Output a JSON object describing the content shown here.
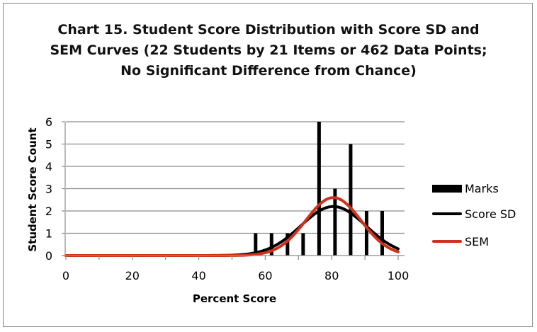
{
  "chart_data": {
    "type": "bar",
    "title_lines": [
      "Chart 15. Student Score Distribution with Score SD and",
      "SEM Curves (22 Students by 21 Items or 462 Data Points;",
      "No Significant Difference from Chance)"
    ],
    "title": "Chart 15. Student Score Distribution with Score SD and SEM Curves (22 Students by 21 Items or 462 Data Points; No Significant Difference from Chance)",
    "xlabel": "Percent Score",
    "ylabel": "Student Score Count",
    "xlim": [
      0,
      100
    ],
    "ylim": [
      0,
      6
    ],
    "x_ticks": [
      0,
      20,
      40,
      60,
      80,
      100
    ],
    "y_ticks": [
      0,
      1,
      2,
      3,
      4,
      5,
      6
    ],
    "grid": "horizontal",
    "legend_position": "right",
    "legend": [
      "Marks",
      "Score SD",
      "SEM"
    ],
    "series": [
      {
        "name": "Marks",
        "kind": "bar",
        "color": "#000000",
        "x": [
          57.1,
          61.9,
          66.7,
          71.4,
          76.2,
          81.0,
          85.7,
          90.5,
          95.2
        ],
        "values": [
          1,
          1,
          1,
          1,
          6,
          3,
          5,
          2,
          2
        ]
      },
      {
        "name": "Score SD",
        "kind": "line",
        "color": "#000000",
        "mean": 80.5,
        "sd": 9.8,
        "peak": 2.2,
        "x": [
          0,
          10,
          20,
          30,
          40,
          50,
          55,
          60,
          65,
          70,
          75,
          80,
          85,
          90,
          95,
          100
        ],
        "values": [
          0,
          0,
          0,
          0,
          0.001,
          0.04,
          0.15,
          0.49,
          0.99,
          1.62,
          2.06,
          2.2,
          2.03,
          1.38,
          0.75,
          0.3
        ]
      },
      {
        "name": "SEM",
        "kind": "line",
        "color": "#d0311a",
        "mean": 80.5,
        "sd": 8.3,
        "peak": 2.6,
        "x": [
          0,
          10,
          20,
          30,
          40,
          50,
          55,
          60,
          65,
          70,
          75,
          80,
          85,
          90,
          95,
          100
        ],
        "values": [
          0,
          0,
          0,
          0,
          0,
          0.01,
          0.07,
          0.31,
          0.79,
          1.57,
          2.33,
          2.6,
          2.26,
          1.35,
          0.56,
          0.17
        ]
      }
    ]
  }
}
